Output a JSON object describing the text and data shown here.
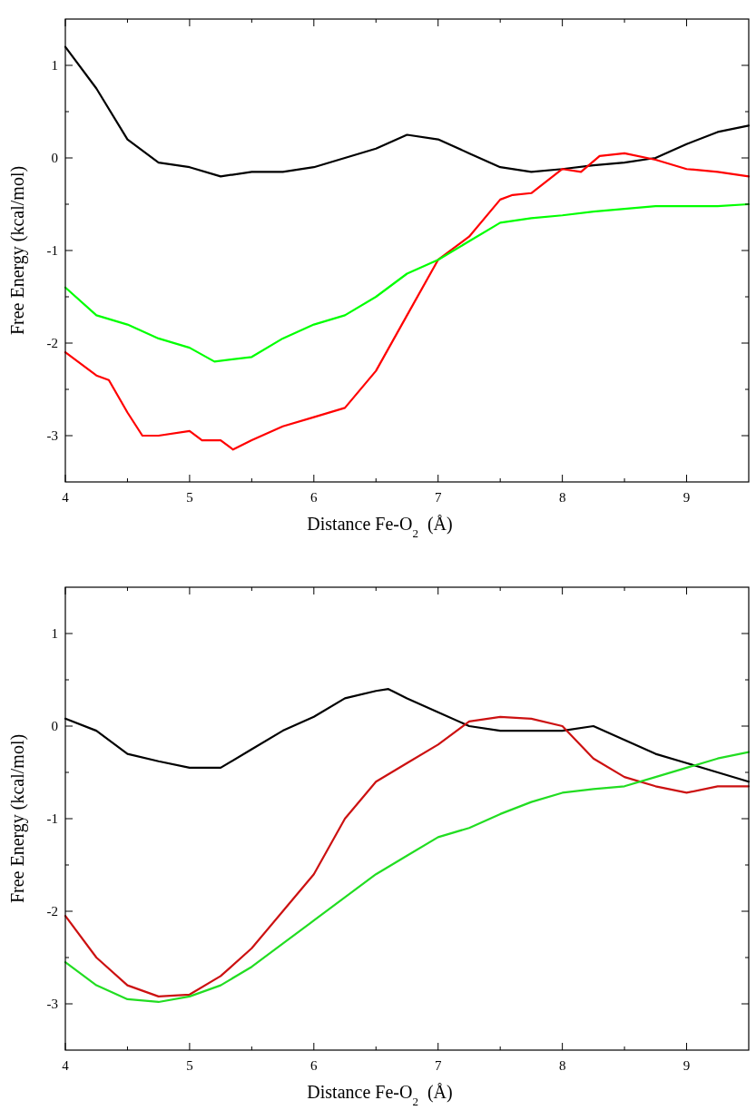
{
  "chart_data": [
    {
      "type": "line",
      "xlabel": "Distance Fe-O$_{2}$  (Å)",
      "ylabel": "Free Energy (kcal/mol)",
      "xlim": [
        4,
        9.5
      ],
      "ylim": [
        -3.5,
        1.5
      ],
      "xticks": [
        4,
        {
          "value": 4.5,
          "label": null
        },
        5,
        {
          "value": 5.5,
          "label": null
        },
        6,
        {
          "value": 6.5,
          "label": null
        },
        7,
        {
          "value": 7.5,
          "label": null
        },
        8,
        {
          "value": 8.5,
          "label": null
        },
        9
      ],
      "yticks": [
        -3,
        {
          "value": -2.5,
          "label": null
        },
        -2,
        {
          "value": -1.5,
          "label": null
        },
        -1,
        {
          "value": -0.5,
          "label": null
        },
        0,
        {
          "value": 0.5,
          "label": null
        },
        1
      ],
      "grid": false,
      "line_style": "solid",
      "marker": "none",
      "series": [
        {
          "color": "#000000",
          "x": [
            4,
            4.25,
            4.5,
            4.75,
            5,
            5.25,
            5.5,
            5.75,
            6,
            6.25,
            6.5,
            6.75,
            7,
            7.25,
            7.5,
            7.75,
            8,
            8.25,
            8.5,
            8.75,
            9,
            9.25,
            9.5
          ],
          "values": [
            1.2,
            0.75,
            0.2,
            -0.05,
            -0.1,
            -0.2,
            -0.15,
            -0.15,
            -0.1,
            0,
            0.1,
            0.25,
            0.2,
            0.05,
            -0.1,
            -0.15,
            -0.12,
            -0.08,
            -0.05,
            0,
            0.15,
            0.28,
            0.35
          ]
        },
        {
          "color": "#ff0000",
          "x": [
            4,
            4.25,
            4.35,
            4.5,
            4.62,
            4.75,
            5,
            5.1,
            5.25,
            5.35,
            5.5,
            5.75,
            6,
            6.25,
            6.5,
            6.75,
            7,
            7.25,
            7.5,
            7.6,
            7.75,
            8,
            8.15,
            8.3,
            8.5,
            8.75,
            9,
            9.25,
            9.5
          ],
          "values": [
            -2.1,
            -2.35,
            -2.4,
            -2.75,
            -3,
            -3,
            -2.95,
            -3.05,
            -3.05,
            -3.15,
            -3.05,
            -2.9,
            -2.8,
            -2.7,
            -2.3,
            -1.7,
            -1.1,
            -0.85,
            -0.45,
            -0.4,
            -0.38,
            -0.12,
            -0.15,
            0.02,
            0.05,
            -0.02,
            -0.12,
            -0.15,
            -0.2
          ]
        },
        {
          "color": "#00ff00",
          "x": [
            4,
            4.25,
            4.5,
            4.75,
            5,
            5.2,
            5.5,
            5.75,
            6,
            6.25,
            6.5,
            6.75,
            7,
            7.25,
            7.5,
            7.75,
            8,
            8.25,
            8.5,
            8.75,
            9,
            9.25,
            9.5
          ],
          "values": [
            -1.4,
            -1.7,
            -1.8,
            -1.95,
            -2.05,
            -2.2,
            -2.15,
            -1.95,
            -1.8,
            -1.7,
            -1.5,
            -1.25,
            -1.1,
            -0.9,
            -0.7,
            -0.65,
            -0.62,
            -0.58,
            -0.55,
            -0.52,
            -0.52,
            -0.52,
            -0.5
          ]
        }
      ]
    },
    {
      "type": "line",
      "xlabel": "Distance Fe-O$_{2}$  (Å)",
      "ylabel": "Free Energy (kcal/mol)",
      "xlim": [
        4,
        9.5
      ],
      "ylim": [
        -3.5,
        1.5
      ],
      "xticks": [
        4,
        {
          "value": 4.5,
          "label": null
        },
        5,
        {
          "value": 5.5,
          "label": null
        },
        6,
        {
          "value": 6.5,
          "label": null
        },
        7,
        {
          "value": 7.5,
          "label": null
        },
        8,
        {
          "value": 8.5,
          "label": null
        },
        9
      ],
      "yticks": [
        -3,
        {
          "value": -2.5,
          "label": null
        },
        -2,
        {
          "value": -1.5,
          "label": null
        },
        -1,
        {
          "value": -0.5,
          "label": null
        },
        0,
        {
          "value": 0.5,
          "label": null
        },
        1
      ],
      "grid": false,
      "line_style": "solid",
      "marker": "none",
      "series": [
        {
          "color": "#000000",
          "x": [
            4,
            4.25,
            4.5,
            4.75,
            5,
            5.25,
            5.5,
            5.75,
            6,
            6.25,
            6.5,
            6.6,
            6.75,
            7,
            7.25,
            7.5,
            7.75,
            8,
            8.25,
            8.5,
            8.75,
            9,
            9.25,
            9.5
          ],
          "values": [
            0.08,
            -0.05,
            -0.3,
            -0.38,
            -0.45,
            -0.45,
            -0.25,
            -0.05,
            0.1,
            0.3,
            0.38,
            0.4,
            0.3,
            0.15,
            0,
            -0.05,
            -0.05,
            -0.05,
            0,
            -0.15,
            -0.3,
            -0.4,
            -0.5,
            -0.6
          ]
        },
        {
          "color": "#cc1111",
          "x": [
            4,
            4.25,
            4.5,
            4.75,
            5,
            5.25,
            5.5,
            5.75,
            6,
            6.25,
            6.5,
            6.75,
            7,
            7.25,
            7.5,
            7.75,
            8,
            8.25,
            8.5,
            8.75,
            9,
            9.25,
            9.5
          ],
          "values": [
            -2.05,
            -2.5,
            -2.8,
            -2.92,
            -2.9,
            -2.7,
            -2.4,
            -2,
            -1.6,
            -1,
            -0.6,
            -0.4,
            -0.2,
            0.05,
            0.1,
            0.08,
            0,
            -0.35,
            -0.55,
            -0.65,
            -0.72,
            -0.65,
            -0.65
          ]
        },
        {
          "color": "#22dd22",
          "x": [
            4,
            4.25,
            4.5,
            4.75,
            5,
            5.25,
            5.5,
            5.75,
            6,
            6.25,
            6.5,
            6.75,
            7,
            7.25,
            7.5,
            7.75,
            8,
            8.25,
            8.5,
            8.75,
            9,
            9.25,
            9.5
          ],
          "values": [
            -2.55,
            -2.8,
            -2.95,
            -2.98,
            -2.92,
            -2.8,
            -2.6,
            -2.35,
            -2.1,
            -1.85,
            -1.6,
            -1.4,
            -1.2,
            -1.1,
            -0.95,
            -0.82,
            -0.72,
            -0.68,
            -0.65,
            -0.55,
            -0.45,
            -0.35,
            -0.28
          ]
        }
      ]
    }
  ]
}
